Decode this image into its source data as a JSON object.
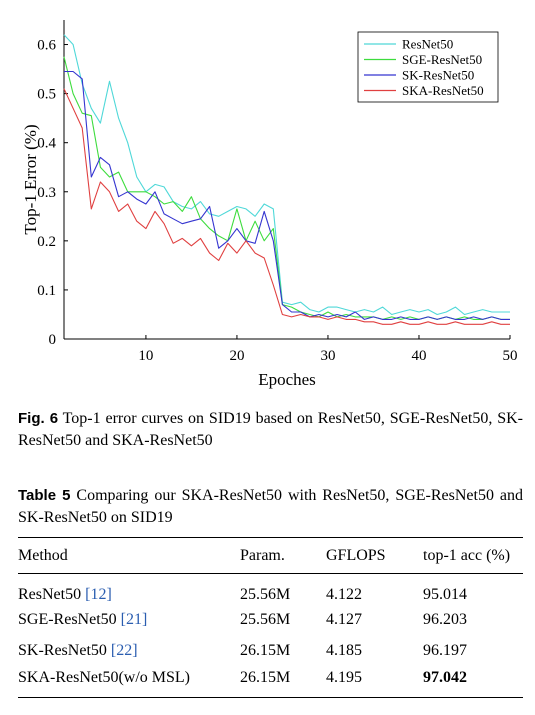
{
  "chart_data": {
    "type": "line",
    "xlabel": "Epoches",
    "ylabel": "Top-1 Error (%)",
    "xlim": [
      1,
      50
    ],
    "ylim": [
      0,
      0.65
    ],
    "xticks": [
      10,
      20,
      30,
      40,
      50
    ],
    "yticks": [
      0,
      0.1,
      0.2,
      0.3,
      0.4,
      0.5,
      0.6
    ],
    "ytick_labels": [
      "0",
      "0.1",
      "0.2",
      "0.3",
      "0.4",
      "0.5",
      "0.6"
    ],
    "legend": "top-right",
    "grid": false,
    "series": [
      {
        "name": "ResNet50",
        "color": "#4fd8d8",
        "x": [
          1,
          2,
          3,
          4,
          5,
          6,
          7,
          8,
          9,
          10,
          11,
          12,
          13,
          14,
          15,
          16,
          17,
          18,
          19,
          20,
          21,
          22,
          23,
          24,
          25,
          26,
          27,
          28,
          29,
          30,
          31,
          32,
          33,
          34,
          35,
          36,
          37,
          38,
          39,
          40,
          41,
          42,
          43,
          44,
          45,
          46,
          47,
          48,
          49,
          50
        ],
        "values": [
          0.62,
          0.6,
          0.52,
          0.47,
          0.44,
          0.525,
          0.45,
          0.4,
          0.33,
          0.3,
          0.315,
          0.31,
          0.28,
          0.27,
          0.265,
          0.28,
          0.255,
          0.25,
          0.26,
          0.27,
          0.265,
          0.25,
          0.275,
          0.265,
          0.075,
          0.07,
          0.075,
          0.06,
          0.055,
          0.065,
          0.065,
          0.06,
          0.055,
          0.06,
          0.055,
          0.065,
          0.05,
          0.055,
          0.06,
          0.055,
          0.06,
          0.05,
          0.055,
          0.065,
          0.05,
          0.055,
          0.06,
          0.055,
          0.055,
          0.055
        ]
      },
      {
        "name": "SGE-ResNet50",
        "color": "#3ddc3d",
        "x": [
          1,
          2,
          3,
          4,
          5,
          6,
          7,
          8,
          9,
          10,
          11,
          12,
          13,
          14,
          15,
          16,
          17,
          18,
          19,
          20,
          21,
          22,
          23,
          24,
          25,
          26,
          27,
          28,
          29,
          30,
          31,
          32,
          33,
          34,
          35,
          36,
          37,
          38,
          39,
          40,
          41,
          42,
          43,
          44,
          45,
          46,
          47,
          48,
          49,
          50
        ],
        "values": [
          0.575,
          0.5,
          0.46,
          0.455,
          0.35,
          0.33,
          0.34,
          0.3,
          0.3,
          0.3,
          0.29,
          0.275,
          0.28,
          0.26,
          0.29,
          0.245,
          0.225,
          0.21,
          0.2,
          0.265,
          0.2,
          0.24,
          0.2,
          0.225,
          0.07,
          0.065,
          0.055,
          0.05,
          0.045,
          0.055,
          0.045,
          0.05,
          0.045,
          0.045,
          0.045,
          0.04,
          0.045,
          0.04,
          0.045,
          0.04,
          0.045,
          0.04,
          0.045,
          0.04,
          0.045,
          0.04,
          0.04,
          0.045,
          0.04,
          0.04
        ]
      },
      {
        "name": "SK-ResNet50",
        "color": "#3535d0",
        "x": [
          1,
          2,
          3,
          4,
          5,
          6,
          7,
          8,
          9,
          10,
          11,
          12,
          13,
          14,
          15,
          16,
          17,
          18,
          19,
          20,
          21,
          22,
          23,
          24,
          25,
          26,
          27,
          28,
          29,
          30,
          31,
          32,
          33,
          34,
          35,
          36,
          37,
          38,
          39,
          40,
          41,
          42,
          43,
          44,
          45,
          46,
          47,
          48,
          49,
          50
        ],
        "values": [
          0.545,
          0.545,
          0.53,
          0.33,
          0.37,
          0.355,
          0.29,
          0.3,
          0.285,
          0.275,
          0.3,
          0.255,
          0.245,
          0.235,
          0.24,
          0.245,
          0.27,
          0.185,
          0.2,
          0.225,
          0.2,
          0.195,
          0.26,
          0.2,
          0.07,
          0.055,
          0.055,
          0.045,
          0.05,
          0.045,
          0.05,
          0.045,
          0.055,
          0.04,
          0.045,
          0.04,
          0.04,
          0.045,
          0.04,
          0.04,
          0.045,
          0.04,
          0.045,
          0.04,
          0.04,
          0.045,
          0.04,
          0.045,
          0.04,
          0.04
        ]
      },
      {
        "name": "SKA-ResNet50",
        "color": "#e04040",
        "x": [
          1,
          2,
          3,
          4,
          5,
          6,
          7,
          8,
          9,
          10,
          11,
          12,
          13,
          14,
          15,
          16,
          17,
          18,
          19,
          20,
          21,
          22,
          23,
          24,
          25,
          26,
          27,
          28,
          29,
          30,
          31,
          32,
          33,
          34,
          35,
          36,
          37,
          38,
          39,
          40,
          41,
          42,
          43,
          44,
          45,
          46,
          47,
          48,
          49,
          50
        ],
        "values": [
          0.51,
          0.47,
          0.43,
          0.265,
          0.32,
          0.3,
          0.26,
          0.275,
          0.24,
          0.225,
          0.26,
          0.235,
          0.195,
          0.205,
          0.19,
          0.205,
          0.175,
          0.16,
          0.195,
          0.175,
          0.2,
          0.175,
          0.165,
          0.11,
          0.05,
          0.045,
          0.05,
          0.045,
          0.045,
          0.04,
          0.045,
          0.04,
          0.04,
          0.035,
          0.035,
          0.03,
          0.03,
          0.035,
          0.03,
          0.03,
          0.035,
          0.03,
          0.03,
          0.035,
          0.03,
          0.03,
          0.03,
          0.035,
          0.03,
          0.03
        ]
      }
    ]
  },
  "figure_caption": {
    "label": "Fig. 6",
    "text": "Top-1 error curves on SID19 based on ResNet50, SGE-ResNet50, SK-ResNet50 and SKA-ResNet50"
  },
  "table_caption": {
    "label": "Table 5",
    "text": "Comparing our SKA-ResNet50 with ResNet50, SGE-ResNet50 and SK-ResNet50 on SID19"
  },
  "table": {
    "headers": [
      "Method",
      "Param.",
      "GFLOPS",
      "top-1 acc (%)"
    ],
    "rows": [
      {
        "method": "ResNet50",
        "ref": "[12]",
        "params": "25.56M",
        "gflops": "4.122",
        "acc": "95.014"
      },
      {
        "method": "SGE-ResNet50",
        "ref": "[21]",
        "params": "25.56M",
        "gflops": "4.127",
        "acc": "96.203"
      },
      {
        "method": "SK-ResNet50",
        "ref": "[22]",
        "params": "26.15M",
        "gflops": "4.185",
        "acc": "96.197"
      },
      {
        "method": "SKA-ResNet50(w/o MSL)",
        "ref": "",
        "params": "26.15M",
        "gflops": "4.195",
        "acc": "97.042"
      }
    ]
  }
}
